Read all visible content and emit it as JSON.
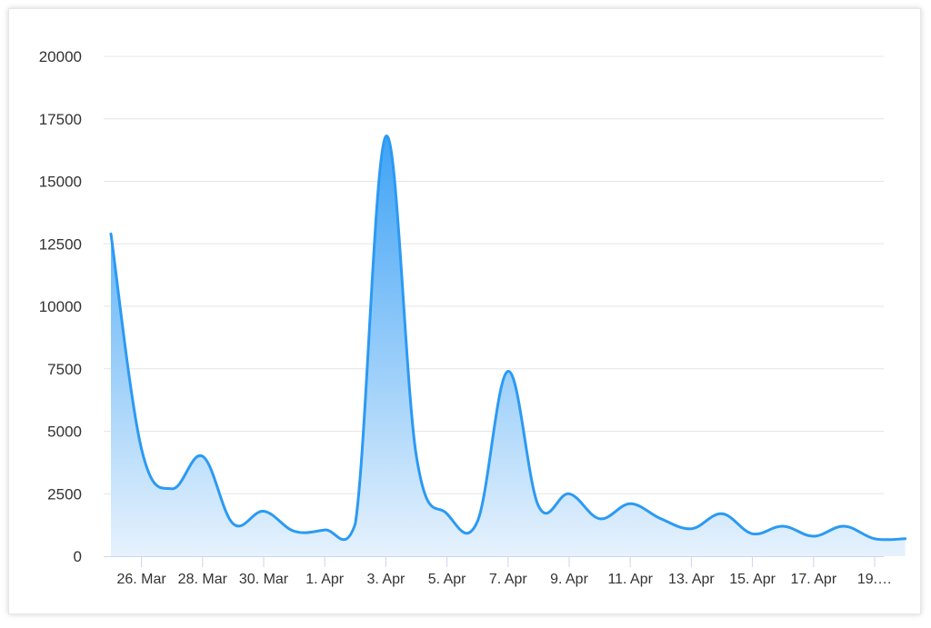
{
  "colors": {
    "line": "#2b9af3",
    "area_top": "#3fa3f5",
    "area_bottom": "#e6f2fd",
    "grid": "#e6e6e6",
    "axis": "#ccd6eb"
  },
  "chart_data": {
    "type": "area",
    "title": "",
    "xlabel": "",
    "ylabel": "",
    "grid": true,
    "legend": "none",
    "ylim": [
      0,
      20000
    ],
    "yticks": [
      "0",
      "2500",
      "5000",
      "7500",
      "10000",
      "12500",
      "15000",
      "17500",
      "20000"
    ],
    "xtick_labels": [
      "26. Mar",
      "28. Mar",
      "30. Mar",
      "1. Apr",
      "3. Apr",
      "5. Apr",
      "7. Apr",
      "9. Apr",
      "11. Apr",
      "13. Apr",
      "15. Apr",
      "17. Apr",
      "19.…"
    ],
    "series": [
      {
        "x": [
          "25. Mar",
          "26. Mar",
          "27. Mar",
          "28. Mar",
          "29. Mar",
          "30. Mar",
          "31. Mar",
          "1. Apr",
          "2. Apr",
          "3. Apr",
          "4. Apr",
          "5. Apr",
          "6. Apr",
          "7. Apr",
          "8. Apr",
          "9. Apr",
          "10. Apr",
          "11. Apr",
          "12. Apr",
          "13. Apr",
          "14. Apr",
          "15. Apr",
          "16. Apr",
          "17. Apr",
          "18. Apr",
          "19. Apr",
          "20. Apr"
        ],
        "values": [
          12900,
          4300,
          2700,
          4000,
          1300,
          1800,
          1000,
          1050,
          1300,
          16800,
          4000,
          1700,
          1400,
          7400,
          2000,
          2500,
          1500,
          2100,
          1500,
          1100,
          1700,
          900,
          1200,
          800,
          1200,
          700,
          700
        ]
      }
    ]
  }
}
